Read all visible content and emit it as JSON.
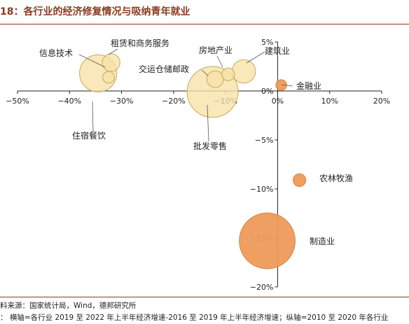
{
  "figure": {
    "title": "18：各行业的经济修复情况与吸纳青年就业",
    "source": "料来源：国家统计局，Wind，德邦研究所",
    "note": "： 横轴=各行业 2019 至 2022 年上半年经济增速-2016 至 2019 年上半年经济增速；纵轴=2010 至 2020 年各行业"
  },
  "colors": {
    "title": "#8B3A1F",
    "bubble_warm": "#F6E2A6",
    "bubble_warm_stroke": "#C9A95C",
    "bubble_orange": "#EE9A5A",
    "bubble_orange_stroke": "#D9823E",
    "axis": "#222222",
    "leader": "#555555"
  },
  "chart_data": {
    "type": "bubble",
    "xlim": [
      -50,
      20
    ],
    "ylim": [
      -20,
      5
    ],
    "x_ticks": [
      -50,
      -40,
      -30,
      -20,
      -10,
      0,
      10,
      20
    ],
    "x_tick_labels": [
      "−50%",
      "−40%",
      "−30%",
      "−20%",
      "−10%",
      "0%",
      "10%",
      "20%"
    ],
    "y_ticks": [
      5,
      0,
      -5,
      -10,
      -15,
      -20
    ],
    "y_tick_labels": [
      "5%",
      "0%",
      "−5%",
      "−10%",
      "−15%",
      "−20%"
    ],
    "points": [
      {
        "label": "信息技术",
        "x": -34.5,
        "y": 1.8,
        "size": 38,
        "color": "warm"
      },
      {
        "label": "租赁和商务服务",
        "x": -32,
        "y": 2.9,
        "size": 18,
        "color": "warm"
      },
      {
        "label": "住宿餐饮",
        "x": -32.5,
        "y": 1.4,
        "size": 12,
        "color": "warm"
      },
      {
        "label": "批发零售",
        "x": -12.5,
        "y": -0.1,
        "size": 52,
        "color": "warm"
      },
      {
        "label": "交运仓储邮政",
        "x": -12,
        "y": 1.2,
        "size": 17,
        "color": "warm"
      },
      {
        "label": "房地产业",
        "x": -9.5,
        "y": 1.7,
        "size": 13,
        "color": "warm"
      },
      {
        "label": "建筑业",
        "x": -6.5,
        "y": 2.0,
        "size": 24,
        "color": "warm"
      },
      {
        "label": "金融业",
        "x": 0.7,
        "y": 0.6,
        "size": 11,
        "color": "orange"
      },
      {
        "label": "农林牧渔",
        "x": 4.2,
        "y": -9.1,
        "size": 13,
        "color": "orange"
      },
      {
        "label": "制造业",
        "x": -2,
        "y": -15.3,
        "size": 57,
        "color": "orange"
      }
    ]
  }
}
